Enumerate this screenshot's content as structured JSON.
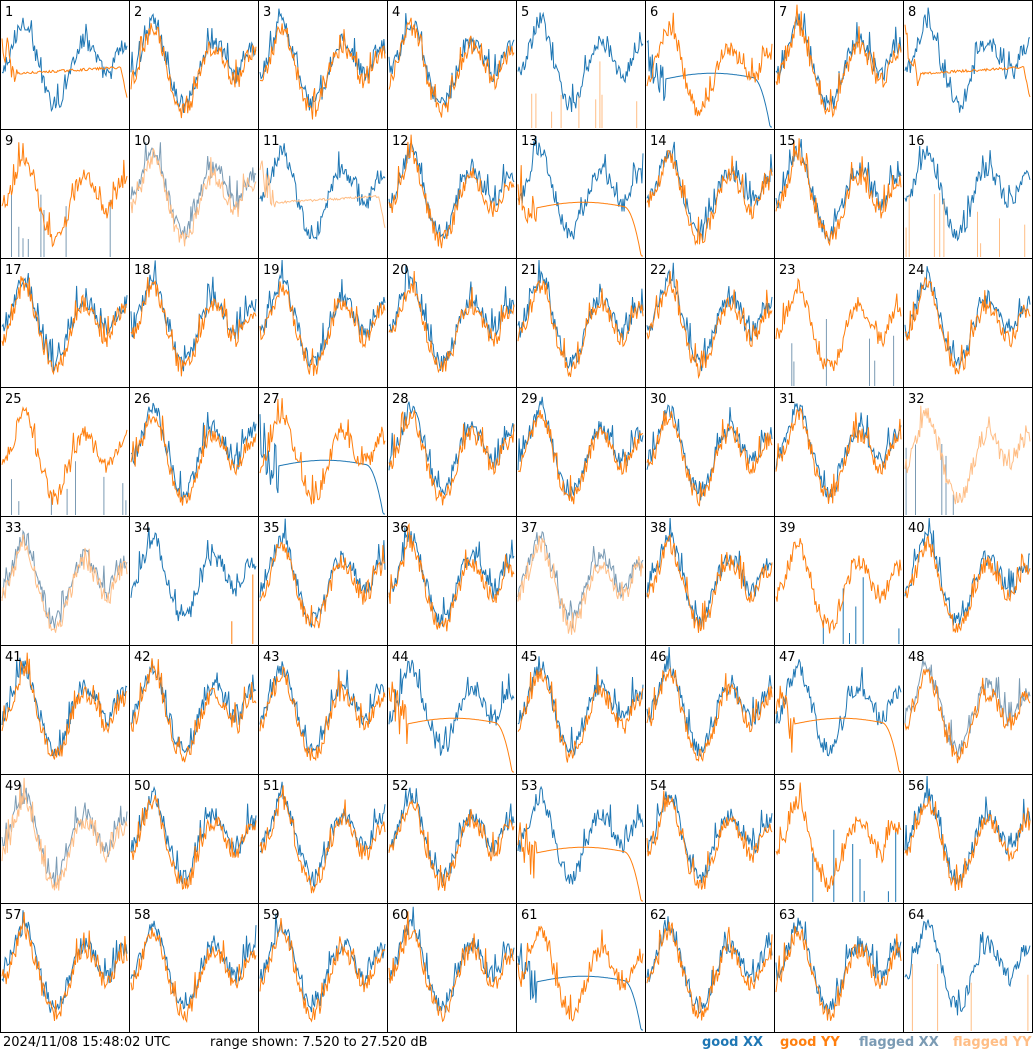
{
  "footer": {
    "timestamp": "2024/11/08 15:48:02 UTC",
    "range_text": "range shown: 7.520 to 27.520 dB"
  },
  "legend": {
    "good_xx": "good XX",
    "good_yy": "good YY",
    "flagged_xx": "flagged XX",
    "flagged_yy": "flagged YY"
  },
  "colors": {
    "good_xx": "#1f77b4",
    "good_yy": "#ff7f0e",
    "flagged_xx": "#7b9bb4",
    "flagged_yy": "#ffbe86",
    "frame": "#000000",
    "background": "#ffffff"
  },
  "chart_data": {
    "type": "line",
    "layout": "8x8 small-multiples grid of per-tile spectra",
    "ylim": [
      7.52,
      27.52
    ],
    "yunit": "dB",
    "series_names": [
      "good XX",
      "good YY",
      "flagged XX",
      "flagged YY"
    ],
    "panels": [
      {
        "id": "1",
        "xx": "good",
        "yy": "good",
        "xx_shape": "spectrum",
        "yy_shape": "flat"
      },
      {
        "id": "2",
        "xx": "good",
        "yy": "good",
        "xx_shape": "spectrum",
        "yy_shape": "spectrum"
      },
      {
        "id": "3",
        "xx": "good",
        "yy": "good",
        "xx_shape": "spectrum",
        "yy_shape": "spectrum"
      },
      {
        "id": "4",
        "xx": "good",
        "yy": "good",
        "xx_shape": "spectrum",
        "yy_shape": "spectrum"
      },
      {
        "id": "5",
        "xx": "good",
        "yy": "flagged",
        "xx_shape": "spectrum",
        "yy_shape": "spikes"
      },
      {
        "id": "6",
        "xx": "good",
        "yy": "good",
        "xx_shape": "decay",
        "yy_shape": "spectrum"
      },
      {
        "id": "7",
        "xx": "good",
        "yy": "good",
        "xx_shape": "spectrum",
        "yy_shape": "spectrum"
      },
      {
        "id": "8",
        "xx": "good",
        "yy": "good",
        "xx_shape": "spectrum",
        "yy_shape": "flat"
      },
      {
        "id": "9",
        "xx": "flagged",
        "yy": "good",
        "xx_shape": "spikes",
        "yy_shape": "spectrum"
      },
      {
        "id": "10",
        "xx": "flagged",
        "yy": "flagged",
        "xx_shape": "spectrum",
        "yy_shape": "spectrum"
      },
      {
        "id": "11",
        "xx": "good",
        "yy": "flagged",
        "xx_shape": "spectrum",
        "yy_shape": "flat"
      },
      {
        "id": "12",
        "xx": "good",
        "yy": "good",
        "xx_shape": "spectrum",
        "yy_shape": "spectrum"
      },
      {
        "id": "13",
        "xx": "good",
        "yy": "good",
        "xx_shape": "spectrum",
        "yy_shape": "decay"
      },
      {
        "id": "14",
        "xx": "good",
        "yy": "good",
        "xx_shape": "spectrum",
        "yy_shape": "spectrum"
      },
      {
        "id": "15",
        "xx": "good",
        "yy": "good",
        "xx_shape": "spectrum",
        "yy_shape": "spectrum"
      },
      {
        "id": "16",
        "xx": "good",
        "yy": "flagged",
        "xx_shape": "spectrum",
        "yy_shape": "spikes"
      },
      {
        "id": "17",
        "xx": "good",
        "yy": "good",
        "xx_shape": "spectrum",
        "yy_shape": "spectrum"
      },
      {
        "id": "18",
        "xx": "good",
        "yy": "good",
        "xx_shape": "spectrum",
        "yy_shape": "spectrum"
      },
      {
        "id": "19",
        "xx": "good",
        "yy": "good",
        "xx_shape": "spectrum",
        "yy_shape": "spectrum"
      },
      {
        "id": "20",
        "xx": "good",
        "yy": "good",
        "xx_shape": "spectrum",
        "yy_shape": "spectrum"
      },
      {
        "id": "21",
        "xx": "good",
        "yy": "good",
        "xx_shape": "spectrum",
        "yy_shape": "spectrum"
      },
      {
        "id": "22",
        "xx": "good",
        "yy": "good",
        "xx_shape": "spectrum",
        "yy_shape": "spectrum"
      },
      {
        "id": "23",
        "xx": "flagged",
        "yy": "good",
        "xx_shape": "spikes",
        "yy_shape": "spectrum"
      },
      {
        "id": "24",
        "xx": "good",
        "yy": "good",
        "xx_shape": "spectrum",
        "yy_shape": "spectrum"
      },
      {
        "id": "25",
        "xx": "flagged",
        "yy": "good",
        "xx_shape": "spikes",
        "yy_shape": "spectrum"
      },
      {
        "id": "26",
        "xx": "good",
        "yy": "good",
        "xx_shape": "spectrum",
        "yy_shape": "spectrum"
      },
      {
        "id": "27",
        "xx": "good",
        "yy": "good",
        "xx_shape": "decay",
        "yy_shape": "spectrum"
      },
      {
        "id": "28",
        "xx": "good",
        "yy": "good",
        "xx_shape": "spectrum",
        "yy_shape": "spectrum"
      },
      {
        "id": "29",
        "xx": "good",
        "yy": "good",
        "xx_shape": "spectrum",
        "yy_shape": "spectrum"
      },
      {
        "id": "30",
        "xx": "good",
        "yy": "good",
        "xx_shape": "spectrum",
        "yy_shape": "spectrum"
      },
      {
        "id": "31",
        "xx": "good",
        "yy": "good",
        "xx_shape": "spectrum",
        "yy_shape": "spectrum"
      },
      {
        "id": "32",
        "xx": "flagged",
        "yy": "flagged",
        "xx_shape": "spikes",
        "yy_shape": "spectrum"
      },
      {
        "id": "33",
        "xx": "flagged",
        "yy": "flagged",
        "xx_shape": "spectrum",
        "yy_shape": "spectrum"
      },
      {
        "id": "34",
        "xx": "good",
        "yy": "good",
        "xx_shape": "spectrum",
        "yy_shape": "spikes"
      },
      {
        "id": "35",
        "xx": "good",
        "yy": "good",
        "xx_shape": "spectrum",
        "yy_shape": "spectrum"
      },
      {
        "id": "36",
        "xx": "good",
        "yy": "good",
        "xx_shape": "spectrum",
        "yy_shape": "spectrum"
      },
      {
        "id": "37",
        "xx": "flagged",
        "yy": "flagged",
        "xx_shape": "spectrum",
        "yy_shape": "spectrum"
      },
      {
        "id": "38",
        "xx": "good",
        "yy": "good",
        "xx_shape": "spectrum",
        "yy_shape": "spectrum"
      },
      {
        "id": "39",
        "xx": "good",
        "yy": "good",
        "xx_shape": "spikes",
        "yy_shape": "spectrum"
      },
      {
        "id": "40",
        "xx": "good",
        "yy": "good",
        "xx_shape": "spectrum",
        "yy_shape": "spectrum"
      },
      {
        "id": "41",
        "xx": "good",
        "yy": "good",
        "xx_shape": "spectrum",
        "yy_shape": "spectrum"
      },
      {
        "id": "42",
        "xx": "good",
        "yy": "good",
        "xx_shape": "spectrum",
        "yy_shape": "spectrum"
      },
      {
        "id": "43",
        "xx": "good",
        "yy": "good",
        "xx_shape": "spectrum",
        "yy_shape": "spectrum"
      },
      {
        "id": "44",
        "xx": "good",
        "yy": "good",
        "xx_shape": "spectrum",
        "yy_shape": "decay"
      },
      {
        "id": "45",
        "xx": "good",
        "yy": "good",
        "xx_shape": "spectrum",
        "yy_shape": "spectrum"
      },
      {
        "id": "46",
        "xx": "good",
        "yy": "good",
        "xx_shape": "spectrum",
        "yy_shape": "spectrum"
      },
      {
        "id": "47",
        "xx": "good",
        "yy": "good",
        "xx_shape": "spectrum",
        "yy_shape": "decay"
      },
      {
        "id": "48",
        "xx": "flagged",
        "yy": "good",
        "xx_shape": "spectrum",
        "yy_shape": "spectrum"
      },
      {
        "id": "49",
        "xx": "flagged",
        "yy": "flagged",
        "xx_shape": "spectrum",
        "yy_shape": "spectrum"
      },
      {
        "id": "50",
        "xx": "good",
        "yy": "good",
        "xx_shape": "spectrum",
        "yy_shape": "spectrum"
      },
      {
        "id": "51",
        "xx": "good",
        "yy": "good",
        "xx_shape": "spectrum",
        "yy_shape": "spectrum"
      },
      {
        "id": "52",
        "xx": "good",
        "yy": "good",
        "xx_shape": "spectrum",
        "yy_shape": "spectrum"
      },
      {
        "id": "53",
        "xx": "good",
        "yy": "good",
        "xx_shape": "spectrum",
        "yy_shape": "decay"
      },
      {
        "id": "54",
        "xx": "good",
        "yy": "good",
        "xx_shape": "spectrum",
        "yy_shape": "spectrum"
      },
      {
        "id": "55",
        "xx": "good",
        "yy": "good",
        "xx_shape": "spikes",
        "yy_shape": "spectrum"
      },
      {
        "id": "56",
        "xx": "good",
        "yy": "good",
        "xx_shape": "spectrum",
        "yy_shape": "spectrum"
      },
      {
        "id": "57",
        "xx": "good",
        "yy": "good",
        "xx_shape": "spectrum",
        "yy_shape": "spectrum"
      },
      {
        "id": "58",
        "xx": "good",
        "yy": "good",
        "xx_shape": "spectrum",
        "yy_shape": "spectrum"
      },
      {
        "id": "59",
        "xx": "good",
        "yy": "good",
        "xx_shape": "spectrum",
        "yy_shape": "spectrum"
      },
      {
        "id": "60",
        "xx": "good",
        "yy": "good",
        "xx_shape": "spectrum",
        "yy_shape": "spectrum"
      },
      {
        "id": "61",
        "xx": "good",
        "yy": "good",
        "xx_shape": "decay",
        "yy_shape": "spectrum"
      },
      {
        "id": "62",
        "xx": "good",
        "yy": "good",
        "xx_shape": "spectrum",
        "yy_shape": "spectrum"
      },
      {
        "id": "63",
        "xx": "good",
        "yy": "good",
        "xx_shape": "spectrum",
        "yy_shape": "spectrum"
      },
      {
        "id": "64",
        "xx": "good",
        "yy": "flagged",
        "xx_shape": "spectrum",
        "yy_shape": "spikes"
      }
    ]
  }
}
